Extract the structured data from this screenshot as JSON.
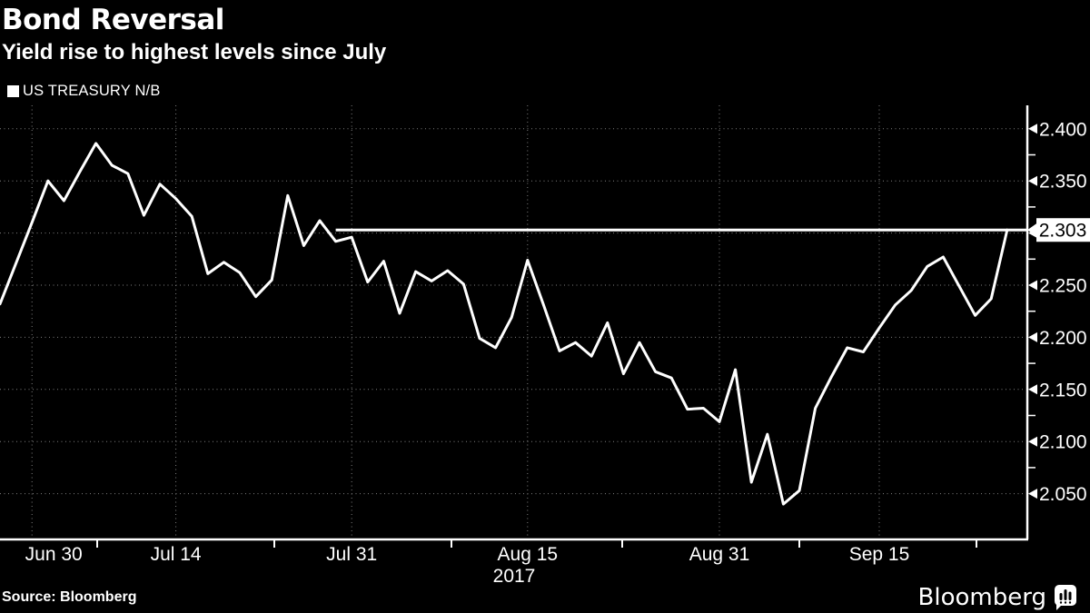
{
  "header": {
    "title": "Bond Reversal",
    "subtitle": "Yield rise to highest levels since July"
  },
  "legend": {
    "label": "US TREASURY N/B",
    "marker_color": "#ffffff"
  },
  "footer": {
    "source": "Source: Bloomberg",
    "brand": "Bloomberg"
  },
  "colors": {
    "background": "#000000",
    "line": "#ffffff",
    "grid": "#808080",
    "text": "#ffffff",
    "tag_bg": "#ffffff",
    "tag_text": "#000000"
  },
  "chart_data": {
    "type": "line",
    "title": "Bond Reversal",
    "subtitle": "Yield rise to highest levels since July",
    "series_name": "US TREASURY N/B",
    "year_label": "2017",
    "unit": "yield_percent",
    "grid": "dotted",
    "legend_position": "top-left",
    "ylim": [
      2.006,
      2.4225
    ],
    "y_major_ticks": [
      2.4,
      2.35,
      2.3,
      2.25,
      2.2,
      2.15,
      2.1,
      2.05
    ],
    "y_major_tick_labels": [
      "2.400",
      "2.350",
      "2.300",
      "2.250",
      "2.200",
      "2.150",
      "2.100",
      "2.050"
    ],
    "y_minor_ticks": [
      2.375,
      2.325,
      2.275,
      2.225,
      2.175,
      2.125,
      2.075
    ],
    "x_labels": [
      {
        "text": "Jun 30",
        "i": 2
      },
      {
        "text": "Jul 14",
        "i": 11
      },
      {
        "text": "Jul 31",
        "i": 22
      },
      {
        "text": "Aug 15",
        "i": 33
      },
      {
        "text": "Aug 31",
        "i": 45
      },
      {
        "text": "Sep 15",
        "i": 55
      }
    ],
    "last_value": 2.303,
    "last_value_label": "2.303",
    "tracking_line": {
      "value": 2.303,
      "start_index": 21
    },
    "dates": [
      "Jun 28",
      "Jun 29",
      "Jun 30",
      "Jul 3",
      "Jul 5",
      "Jul 6",
      "Jul 7",
      "Jul 10",
      "Jul 11",
      "Jul 12",
      "Jul 13",
      "Jul 14",
      "Jul 17",
      "Jul 18",
      "Jul 19",
      "Jul 20",
      "Jul 21",
      "Jul 24",
      "Jul 25",
      "Jul 26",
      "Jul 27",
      "Jul 28",
      "Jul 31",
      "Aug 1",
      "Aug 2",
      "Aug 3",
      "Aug 4",
      "Aug 7",
      "Aug 8",
      "Aug 9",
      "Aug 10",
      "Aug 11",
      "Aug 14",
      "Aug 15",
      "Aug 16",
      "Aug 17",
      "Aug 18",
      "Aug 21",
      "Aug 22",
      "Aug 23",
      "Aug 24",
      "Aug 25",
      "Aug 28",
      "Aug 29",
      "Aug 30",
      "Aug 31",
      "Sep 1",
      "Sep 5",
      "Sep 6",
      "Sep 7",
      "Sep 8",
      "Sep 11",
      "Sep 12",
      "Sep 13",
      "Sep 14",
      "Sep 15",
      "Sep 18",
      "Sep 19",
      "Sep 20",
      "Sep 21",
      "Sep 22",
      "Sep 25",
      "Sep 26",
      "Sep 27"
    ],
    "values": [
      2.232,
      2.271,
      2.31,
      2.35,
      2.331,
      2.359,
      2.386,
      2.365,
      2.357,
      2.317,
      2.347,
      2.333,
      2.316,
      2.261,
      2.272,
      2.262,
      2.239,
      2.255,
      2.336,
      2.288,
      2.312,
      2.292,
      2.296,
      2.253,
      2.273,
      2.223,
      2.263,
      2.254,
      2.264,
      2.251,
      2.199,
      2.19,
      2.219,
      2.274,
      2.231,
      2.187,
      2.195,
      2.182,
      2.214,
      2.165,
      2.195,
      2.167,
      2.161,
      2.131,
      2.132,
      2.119,
      2.169,
      2.061,
      2.107,
      2.04,
      2.053,
      2.132,
      2.162,
      2.19,
      2.186,
      2.209,
      2.231,
      2.245,
      2.268,
      2.277,
      2.249,
      2.221,
      2.237,
      2.303
    ]
  }
}
